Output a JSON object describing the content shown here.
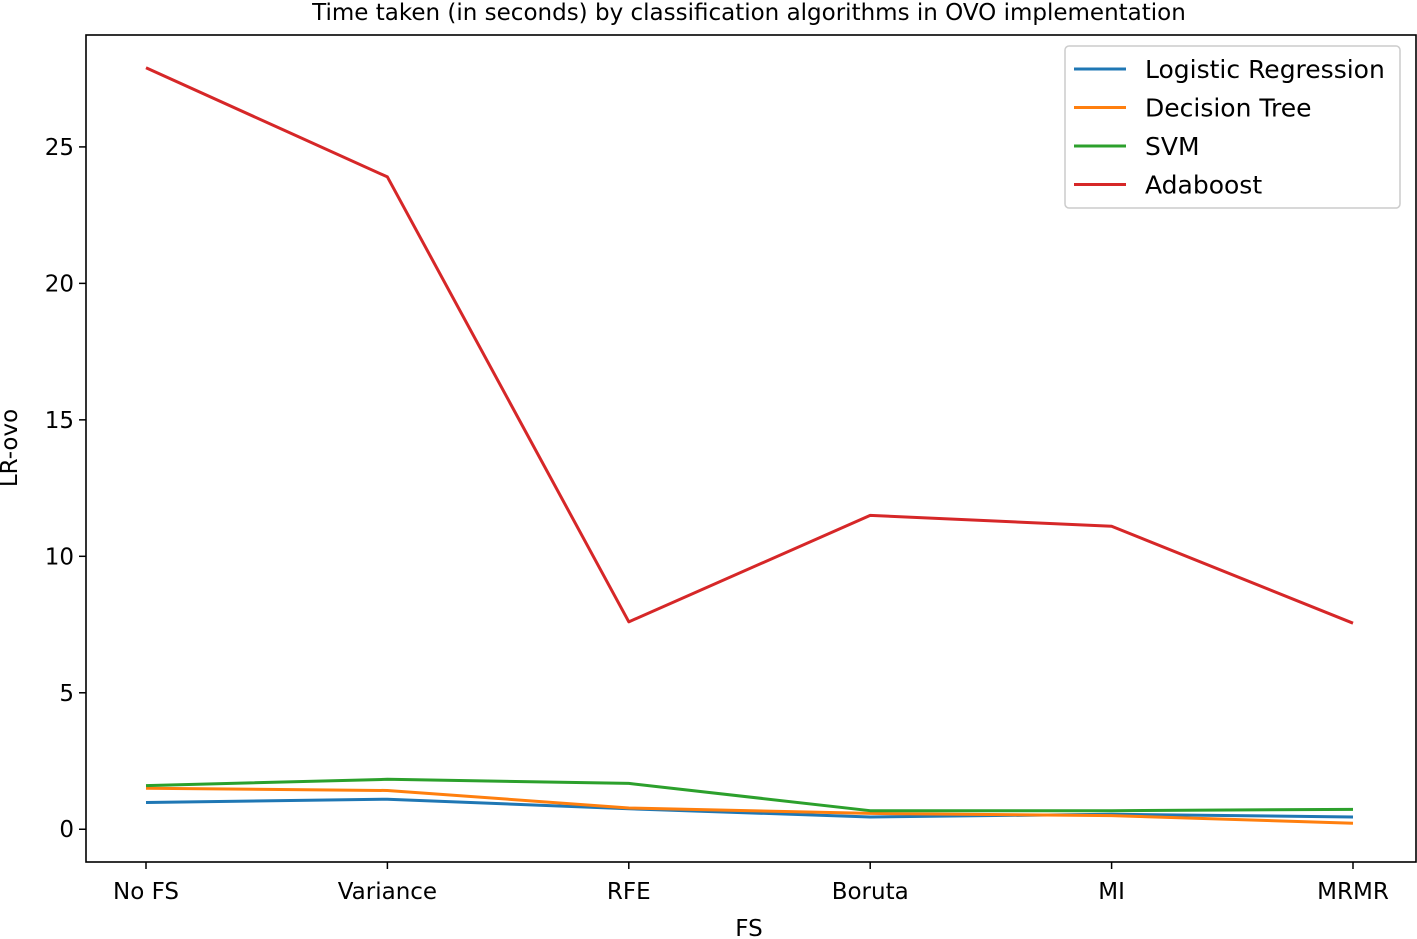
{
  "chart_data": {
    "type": "line",
    "title": "Time taken (in seconds) by classification algorithms in OVO implementation",
    "xlabel": "FS",
    "ylabel": "LR-ovo",
    "categories": [
      "No FS",
      "Variance",
      "RFE",
      "Boruta",
      "MI",
      "MRMR"
    ],
    "yticks": [
      0,
      5,
      10,
      15,
      20,
      25
    ],
    "ylim": [
      -1.2,
      29.1
    ],
    "grid": false,
    "legend_position": "upper right",
    "series": [
      {
        "name": "Logistic Regression",
        "color": "#1f77b4",
        "values": [
          0.98,
          1.1,
          0.75,
          0.45,
          0.55,
          0.45
        ]
      },
      {
        "name": "Decision Tree",
        "color": "#ff7f0e",
        "values": [
          1.5,
          1.42,
          0.78,
          0.58,
          0.5,
          0.22
        ]
      },
      {
        "name": "SVM",
        "color": "#2ca02c",
        "values": [
          1.6,
          1.83,
          1.68,
          0.68,
          0.68,
          0.73
        ]
      },
      {
        "name": "Adaboost",
        "color": "#d62728",
        "values": [
          27.9,
          23.9,
          7.6,
          11.5,
          11.1,
          7.55
        ]
      }
    ]
  }
}
